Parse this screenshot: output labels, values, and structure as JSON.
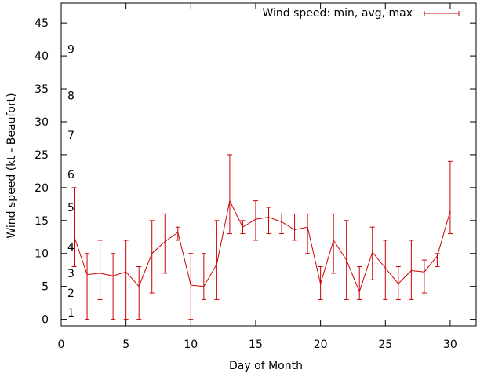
{
  "chart_data": {
    "type": "line",
    "title": "",
    "xlabel": "Day of Month",
    "ylabel": "Wind speed (kt - Beaufort)",
    "xlim": [
      0,
      32
    ],
    "ylim": [
      -1,
      48
    ],
    "xticks": [
      0,
      5,
      10,
      15,
      20,
      25,
      30
    ],
    "yticks": [
      0,
      5,
      10,
      15,
      20,
      25,
      30,
      35,
      40,
      45
    ],
    "grid": false,
    "legend": {
      "position": "top-right"
    },
    "series": [
      {
        "name": "Wind speed: min, avg, max",
        "color": "#cc0000",
        "points": [
          {
            "x": 1,
            "avg": 12.6,
            "min": 8,
            "max": 20
          },
          {
            "x": 2,
            "avg": 6.8,
            "min": 0,
            "max": 10
          },
          {
            "x": 3,
            "avg": 7.0,
            "min": 3,
            "max": 12
          },
          {
            "x": 4,
            "avg": 6.6,
            "min": 0,
            "max": 10
          },
          {
            "x": 5,
            "avg": 7.2,
            "min": 0,
            "max": 12
          },
          {
            "x": 6,
            "avg": 5.0,
            "min": 0,
            "max": 8
          },
          {
            "x": 7,
            "avg": 10.0,
            "min": 4,
            "max": 15
          },
          {
            "x": 8,
            "avg": 11.8,
            "min": 7,
            "max": 16
          },
          {
            "x": 9,
            "avg": 13.2,
            "min": 12,
            "max": 14
          },
          {
            "x": 10,
            "avg": 5.2,
            "min": 0,
            "max": 10
          },
          {
            "x": 11,
            "avg": 5.0,
            "min": 3,
            "max": 10
          },
          {
            "x": 12,
            "avg": 8.4,
            "min": 3,
            "max": 15
          },
          {
            "x": 13,
            "avg": 18.0,
            "min": 13,
            "max": 25
          },
          {
            "x": 14,
            "avg": 14.0,
            "min": 13,
            "max": 15
          },
          {
            "x": 15,
            "avg": 15.2,
            "min": 12,
            "max": 18
          },
          {
            "x": 16,
            "avg": 15.5,
            "min": 13,
            "max": 17
          },
          {
            "x": 17,
            "avg": 14.8,
            "min": 13,
            "max": 16
          },
          {
            "x": 18,
            "avg": 13.6,
            "min": 12,
            "max": 16
          },
          {
            "x": 19,
            "avg": 14.0,
            "min": 10,
            "max": 16
          },
          {
            "x": 20,
            "avg": 5.4,
            "min": 3,
            "max": 8
          },
          {
            "x": 21,
            "avg": 12.0,
            "min": 7,
            "max": 16
          },
          {
            "x": 22,
            "avg": 9.0,
            "min": 3,
            "max": 15
          },
          {
            "x": 23,
            "avg": 4.2,
            "min": 3,
            "max": 8
          },
          {
            "x": 24,
            "avg": 10.2,
            "min": 6,
            "max": 14
          },
          {
            "x": 25,
            "avg": 7.8,
            "min": 3,
            "max": 12
          },
          {
            "x": 26,
            "avg": 5.4,
            "min": 3,
            "max": 8
          },
          {
            "x": 27,
            "avg": 7.4,
            "min": 3,
            "max": 12
          },
          {
            "x": 28,
            "avg": 7.2,
            "min": 4,
            "max": 9
          },
          {
            "x": 29,
            "avg": 9.6,
            "min": 8,
            "max": 10
          },
          {
            "x": 30,
            "avg": 16.4,
            "min": 13,
            "max": 24
          }
        ]
      }
    ],
    "beaufort_labels": [
      {
        "label": "1",
        "y": 1
      },
      {
        "label": "2",
        "y": 4
      },
      {
        "label": "3",
        "y": 7
      },
      {
        "label": "4",
        "y": 11
      },
      {
        "label": "5",
        "y": 17
      },
      {
        "label": "6",
        "y": 22
      },
      {
        "label": "7",
        "y": 28
      },
      {
        "label": "8",
        "y": 34
      },
      {
        "label": "9",
        "y": 41
      }
    ]
  }
}
